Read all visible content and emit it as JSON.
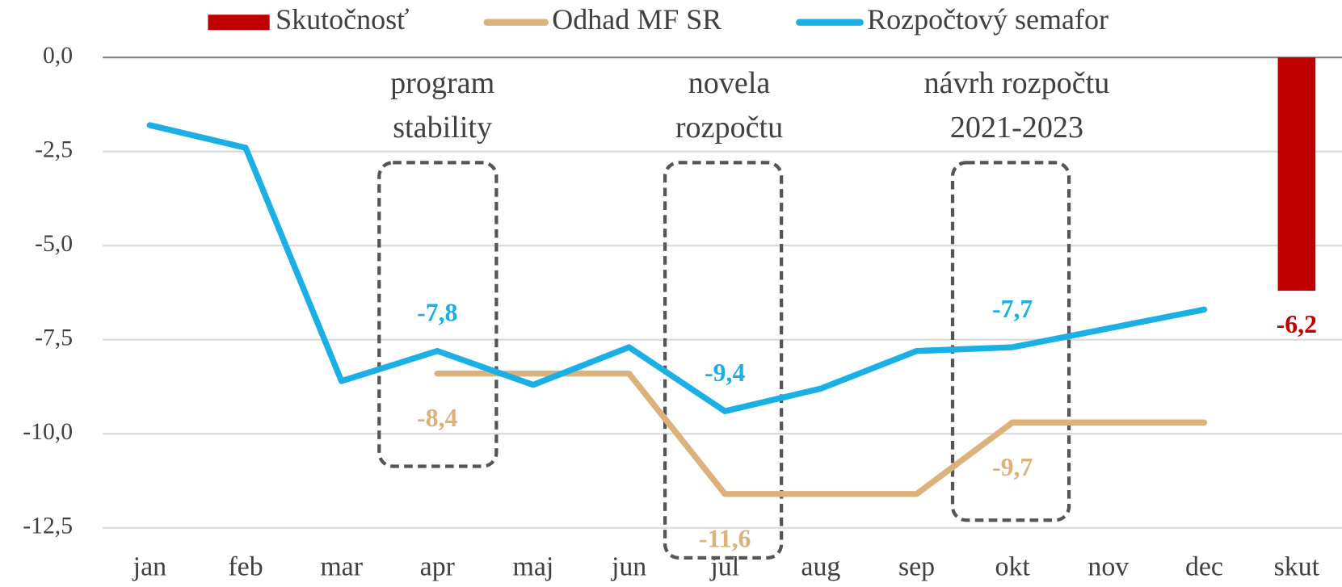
{
  "chart_data": {
    "type": "line",
    "categories": [
      "jan",
      "feb",
      "mar",
      "apr",
      "maj",
      "jun",
      "jul",
      "aug",
      "sep",
      "okt",
      "nov",
      "dec",
      "skut"
    ],
    "series": [
      {
        "name": "Skutočnosť",
        "type": "bar",
        "color": "#c00000",
        "values": [
          null,
          null,
          null,
          null,
          null,
          null,
          null,
          null,
          null,
          null,
          null,
          null,
          -6.2
        ],
        "value_labels": [
          null,
          null,
          null,
          null,
          null,
          null,
          null,
          null,
          null,
          null,
          null,
          null,
          "-6,2"
        ]
      },
      {
        "name": "Odhad MF SR",
        "type": "line",
        "color": "#dcb27a",
        "values": [
          null,
          null,
          null,
          -8.4,
          -8.4,
          -8.4,
          -11.6,
          -11.6,
          -11.6,
          -9.7,
          -9.7,
          -9.7,
          null
        ],
        "value_labels": [
          null,
          null,
          null,
          "-8,4",
          null,
          null,
          "-11,6",
          null,
          null,
          "-9,7",
          null,
          null,
          null
        ]
      },
      {
        "name": "Rozpočtový semafor",
        "type": "line",
        "color": "#1ab0e6",
        "values": [
          -1.8,
          -2.4,
          -8.6,
          -7.8,
          -8.7,
          -7.7,
          -9.4,
          -8.8,
          -7.8,
          -7.7,
          -7.2,
          -6.7,
          null
        ],
        "value_labels": [
          null,
          null,
          null,
          "-7,8",
          null,
          null,
          "-9,4",
          null,
          null,
          "-7,7",
          null,
          null,
          null
        ]
      }
    ],
    "ylim": [
      -13.2,
      0
    ],
    "yticks": [
      {
        "value": 0,
        "label": "0,0"
      },
      {
        "value": -2.5,
        "label": "-2,5"
      },
      {
        "value": -5,
        "label": "-5,0"
      },
      {
        "value": -7.5,
        "label": "-7,5"
      },
      {
        "value": -10,
        "label": "-10,0"
      },
      {
        "value": -12.5,
        "label": "-12,5"
      }
    ],
    "grid": true,
    "legend": "top",
    "annotations": [
      {
        "lines": [
          "program",
          "stability"
        ]
      },
      {
        "lines": [
          "novela",
          "rozpočtu"
        ]
      },
      {
        "lines": [
          "návrh rozpočtu",
          "2021-2023"
        ]
      }
    ]
  }
}
